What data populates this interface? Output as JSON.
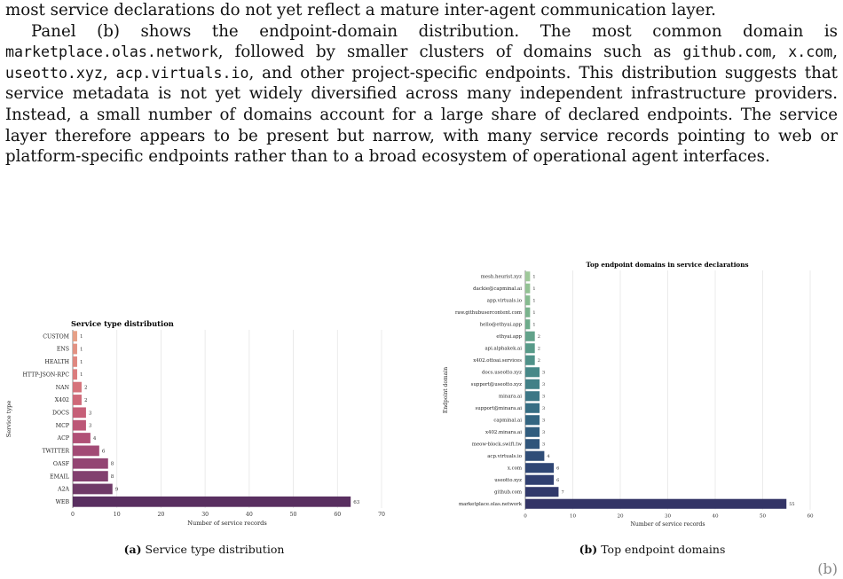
{
  "text": {
    "line0": "most service declarations do not yet reflect a mature inter-agent communication layer.",
    "p2_a": "Panel (b) shows the endpoint-domain distribution. The most common domain is ",
    "d1": "marketplace.olas.network",
    "p2_b": ", followed by smaller clusters of domains such as ",
    "d2": "github.com",
    "p2_c": ", ",
    "d3": "x.com",
    "p2_d": ", ",
    "d4": "useotto.xyz",
    "p2_e": ", ",
    "d5": "acp.virtuals.io",
    "p2_f": ", and other project-specific endpoints. This distribution suggests that service metadata is not yet widely diversified across many independent infrastructure providers. Instead, a small number of domains account for a large share of declared endpoints. The service layer therefore appears to be present but narrow, with many service records pointing to web or platform-specific endpoints rather than to a broad ecosystem of operational agent interfaces."
  },
  "captions": {
    "a_tag": "(a)",
    "a_text": "Service type distribution",
    "b_tag": "(b)",
    "b_text": "Top endpoint domains",
    "trailing": "(b)"
  },
  "chart_data": [
    {
      "type": "bar",
      "orientation": "horizontal",
      "title": "Service type distribution",
      "xlabel": "Number of service records",
      "ylabel": "Service type",
      "xlim": [
        0,
        70
      ],
      "xticks": [
        0,
        10,
        20,
        30,
        40,
        50,
        60,
        70
      ],
      "grid": "vertical",
      "categories": [
        "CUSTOM",
        "ENS",
        "HEALTH",
        "HTTP-JSON-RPC",
        "NAN",
        "X402",
        "DOCS",
        "MCP",
        "ACP",
        "TWITTER",
        "OASF",
        "EMAIL",
        "A2A",
        "WEB"
      ],
      "values": [
        1,
        1,
        1,
        1,
        2,
        2,
        3,
        3,
        4,
        6,
        8,
        8,
        9,
        63
      ],
      "colors": [
        "#e6a087",
        "#e29283",
        "#df8780",
        "#db7d7e",
        "#d5737b",
        "#cf6979",
        "#c65f78",
        "#bc5777",
        "#b05076",
        "#a24a75",
        "#934573",
        "#82406f",
        "#6f3a68",
        "#592f60"
      ]
    },
    {
      "type": "bar",
      "orientation": "horizontal",
      "title": "Top endpoint domains in service declarations",
      "xlabel": "Number of service records",
      "ylabel": "Endpoint domain",
      "xlim": [
        0,
        60
      ],
      "xticks": [
        0,
        10,
        20,
        30,
        40,
        50,
        60
      ],
      "grid": "vertical",
      "categories": [
        "mesh.heurist.xyz",
        "dackie@capminal.ai",
        "app.virtuals.io",
        "raw.githubusercontent.com",
        "hello@ethyai.app",
        "ethyai.app",
        "api.alphakek.ai",
        "x402.ottoai.services",
        "docs.useotto.xyz",
        "support@useotto.xyz",
        "minara.ai",
        "support@minara.ai",
        "capminal.ai",
        "x402.minara.ai",
        "meow-block.swift.tw",
        "acp.virtuals.io",
        "x.com",
        "useotto.xyz",
        "github.com",
        "marketplace.olas.network"
      ],
      "values": [
        1,
        1,
        1,
        1,
        1,
        2,
        2,
        2,
        3,
        3,
        3,
        3,
        3,
        3,
        3,
        4,
        6,
        6,
        7,
        55
      ],
      "colors": [
        "#9fc99a",
        "#93c294",
        "#86bb90",
        "#79b38d",
        "#6dab8b",
        "#62a28a",
        "#589a89",
        "#4f9189",
        "#478888",
        "#418087",
        "#3c7786",
        "#376e84",
        "#336581",
        "#315d7e",
        "#2f557b",
        "#2f4d77",
        "#2f4674",
        "#303f70",
        "#31396b",
        "#333466"
      ]
    }
  ]
}
